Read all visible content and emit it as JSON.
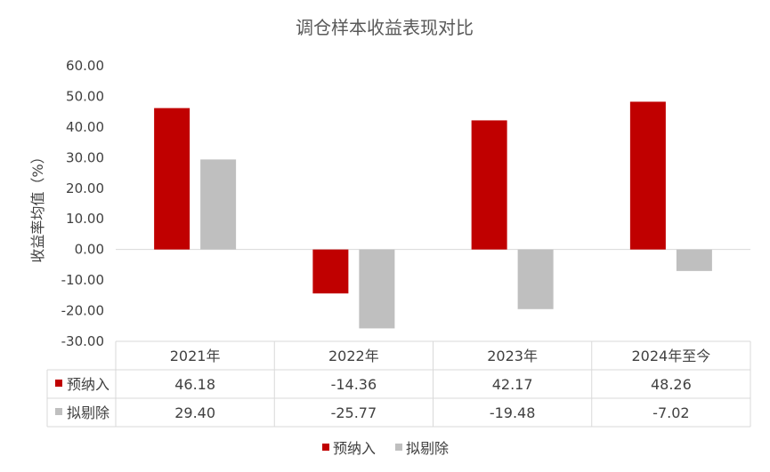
{
  "chart_data": {
    "type": "bar",
    "title": "调仓样本收益表现对比",
    "ylabel": "收益率均值（%）",
    "xlabel": "",
    "categories": [
      "2021年",
      "2022年",
      "2023年",
      "2024年至今"
    ],
    "series": [
      {
        "name": "预纳入",
        "values": [
          46.18,
          -14.36,
          42.17,
          48.26
        ],
        "color": "#c00000",
        "labels": [
          "46.18",
          "-14.36",
          "42.17",
          "48.26"
        ]
      },
      {
        "name": "拟剔除",
        "values": [
          29.4,
          -25.77,
          -19.48,
          -7.02
        ],
        "color": "#bfbfbf",
        "labels": [
          "29.40",
          "-25.77",
          "-19.48",
          "-7.02"
        ]
      }
    ],
    "ylim": [
      -30,
      60
    ],
    "yticks": [
      "60.00",
      "50.00",
      "40.00",
      "30.00",
      "20.00",
      "10.00",
      "0.00",
      "-10.00",
      "-20.00",
      "-30.00"
    ],
    "legend_position": "bottom",
    "data_table": true,
    "grid": false
  }
}
